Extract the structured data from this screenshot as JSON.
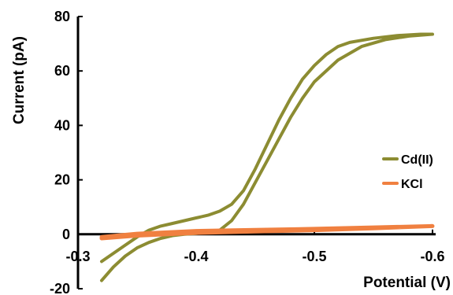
{
  "chart_data": {
    "type": "line",
    "xlabel": "Potential (V)",
    "ylabel": "Current (pA)",
    "xlim": [
      -0.3,
      -0.6
    ],
    "ylim": [
      -20,
      80
    ],
    "x_ticks": [
      "-0.3",
      "-0.4",
      "-0.5",
      "-0.6"
    ],
    "y_ticks": [
      "80",
      "60",
      "40",
      "20",
      "0",
      "-20"
    ],
    "legend_position": "right",
    "grid": false,
    "series": [
      {
        "name": "Cd(II)",
        "color": "#8c8c32",
        "points": [
          [
            -0.32,
            -17
          ],
          [
            -0.33,
            -12
          ],
          [
            -0.34,
            -8
          ],
          [
            -0.35,
            -5
          ],
          [
            -0.36,
            -3
          ],
          [
            -0.37,
            -1.5
          ],
          [
            -0.38,
            -0.5
          ],
          [
            -0.39,
            0
          ],
          [
            -0.4,
            0.3
          ],
          [
            -0.41,
            0.8
          ],
          [
            -0.42,
            1.5
          ],
          [
            -0.43,
            5
          ],
          [
            -0.44,
            11
          ],
          [
            -0.45,
            19
          ],
          [
            -0.46,
            27
          ],
          [
            -0.47,
            35
          ],
          [
            -0.48,
            43
          ],
          [
            -0.49,
            50
          ],
          [
            -0.5,
            56
          ],
          [
            -0.52,
            64
          ],
          [
            -0.54,
            69
          ],
          [
            -0.56,
            71.5
          ],
          [
            -0.58,
            72.8
          ],
          [
            -0.6,
            73.5
          ],
          [
            -0.59,
            73.5
          ],
          [
            -0.57,
            73
          ],
          [
            -0.55,
            72
          ],
          [
            -0.53,
            70.5
          ],
          [
            -0.52,
            69
          ],
          [
            -0.51,
            66
          ],
          [
            -0.5,
            62
          ],
          [
            -0.49,
            57
          ],
          [
            -0.48,
            50
          ],
          [
            -0.47,
            42
          ],
          [
            -0.46,
            33
          ],
          [
            -0.45,
            24
          ],
          [
            -0.44,
            16
          ],
          [
            -0.43,
            11
          ],
          [
            -0.42,
            8.5
          ],
          [
            -0.41,
            7
          ],
          [
            -0.4,
            6
          ],
          [
            -0.39,
            5
          ],
          [
            -0.38,
            4
          ],
          [
            -0.37,
            3
          ],
          [
            -0.36,
            1.5
          ],
          [
            -0.35,
            -1
          ],
          [
            -0.34,
            -4
          ],
          [
            -0.33,
            -7
          ],
          [
            -0.32,
            -10
          ]
        ]
      },
      {
        "name": "KCl",
        "color": "#f08040",
        "points": [
          [
            -0.32,
            -1.5
          ],
          [
            -0.35,
            -0.5
          ],
          [
            -0.4,
            0.5
          ],
          [
            -0.45,
            1
          ],
          [
            -0.5,
            1.5
          ],
          [
            -0.55,
            2.2
          ],
          [
            -0.6,
            3
          ],
          [
            -0.55,
            2.5
          ],
          [
            -0.5,
            2
          ],
          [
            -0.45,
            1.6
          ],
          [
            -0.4,
            1.2
          ],
          [
            -0.35,
            0.2
          ],
          [
            -0.32,
            -1
          ]
        ]
      }
    ]
  }
}
